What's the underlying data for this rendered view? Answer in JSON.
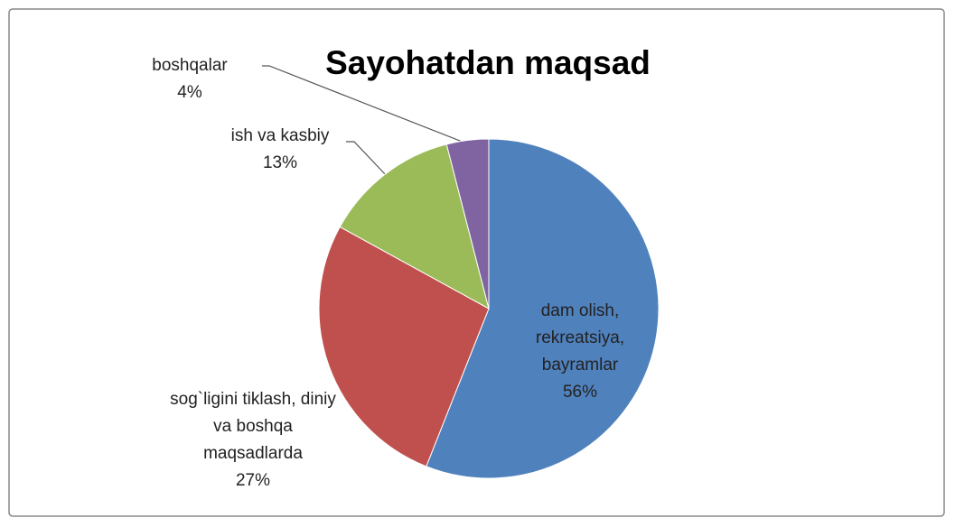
{
  "chart_data": {
    "type": "pie",
    "title": "Sayohatdan maqsad",
    "categories": [
      "dam olish, rekreatsiya, bayramlar",
      "sog`ligini tiklash, diniy va boshqa maqsadlarda",
      "ish va kasbiy",
      "boshqalar"
    ],
    "values": [
      56,
      27,
      13,
      4
    ],
    "value_labels": [
      "56%",
      "27%",
      "13%",
      "4%"
    ],
    "colors": [
      "#4f81bd",
      "#c0504d",
      "#9bbb59",
      "#8064a2"
    ]
  }
}
